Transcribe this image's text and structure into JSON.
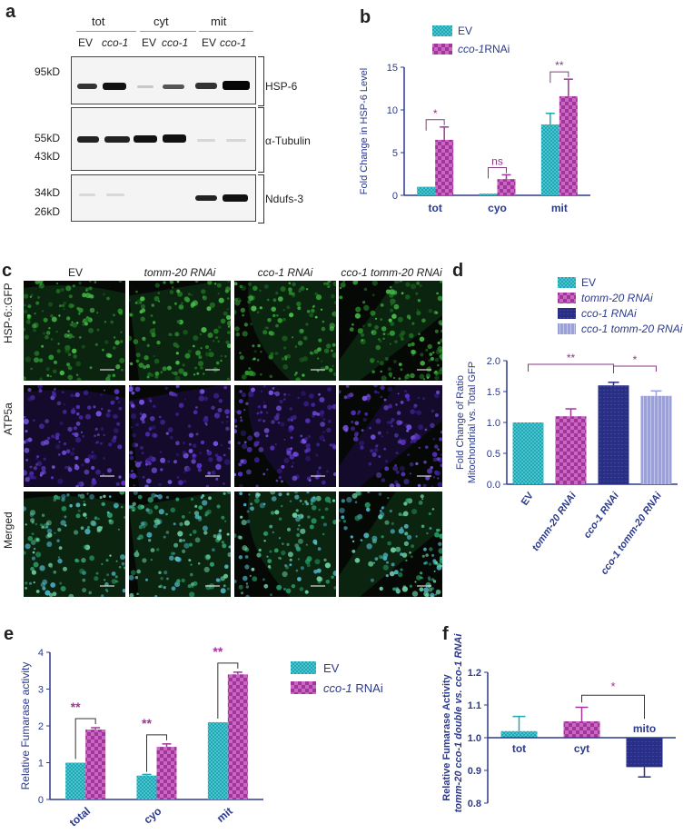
{
  "panels": {
    "a": {
      "label": "a",
      "groups": [
        "tot",
        "cyt",
        "mit"
      ],
      "lanes": [
        "EV",
        "cco-1",
        "EV",
        "cco-1",
        "EV",
        "cco-1"
      ],
      "markers": [
        "95kD",
        "55kD",
        "43kD",
        "34kD",
        "26kD"
      ],
      "rows": [
        "HSP-6",
        "α-Tubulin",
        "Ndufs-3"
      ]
    },
    "b": {
      "label": "b"
    },
    "c": {
      "label": "c",
      "columns": [
        "EV",
        "tomm-20 RNAi",
        "cco-1 RNAi",
        "cco-1 tomm-20 RNAi"
      ],
      "rows": [
        "HSP-6::GFP",
        "ATP5a",
        "Merged"
      ]
    },
    "d": {
      "label": "d"
    },
    "e": {
      "label": "e"
    },
    "f": {
      "label": "f"
    }
  },
  "chart_data": [
    {
      "id": "b",
      "type": "bar",
      "categories": [
        "tot",
        "cyo",
        "mit"
      ],
      "series": [
        {
          "name": "EV",
          "values": [
            1.0,
            0.2,
            8.3
          ],
          "errors": [
            0,
            0,
            1.3
          ],
          "color": "#1ea7b5"
        },
        {
          "name": "cco-1RNAi",
          "values": [
            6.5,
            1.9,
            11.6
          ],
          "errors": [
            1.5,
            0.5,
            2.0
          ],
          "color": "#a2359b"
        }
      ],
      "title": "",
      "xlabel": "",
      "ylabel": "Fold Change in HSP-6 Level",
      "ylim": [
        0,
        15
      ],
      "yticks": [
        0,
        5,
        10,
        15
      ],
      "significance": [
        {
          "category": "tot",
          "text": "*"
        },
        {
          "category": "cyo",
          "text": "ns"
        },
        {
          "category": "mit",
          "text": "**"
        }
      ],
      "legend": "top"
    },
    {
      "id": "d",
      "type": "bar",
      "categories": [
        "EV",
        "tomm-20 RNAi",
        "cco-1 RNAi",
        "cco-1 tomm-20 RNAi"
      ],
      "series": [
        {
          "name": "",
          "values": [
            1.0,
            1.1,
            1.6,
            1.43
          ],
          "errors": [
            0,
            0.12,
            0.05,
            0.08
          ]
        }
      ],
      "legend_entries": [
        {
          "name": "EV",
          "color": "#1ea7b5"
        },
        {
          "name": "tomm-20 RNAi",
          "color": "#a2359b"
        },
        {
          "name": "cco-1 RNAi",
          "color": "#2a2f86"
        },
        {
          "name": "cco-1 tomm-20 RNAi",
          "color": "#9aa0dc"
        }
      ],
      "title": "",
      "xlabel": "",
      "ylabel": "Fold Change of Ratio Mitochondrial vs. Total GFP",
      "ylabel_lines": [
        "Fold Change of Ratio",
        "Mitochondrial vs. Total GFP"
      ],
      "ylim": [
        0,
        2.0
      ],
      "yticks": [
        "0.0",
        "0.5",
        "1.0",
        "1.5",
        "2.0"
      ],
      "significance": [
        {
          "from": 0,
          "to": 2,
          "text": "**"
        },
        {
          "from": 2,
          "to": 3,
          "text": "*"
        }
      ],
      "legend": "top"
    },
    {
      "id": "e",
      "type": "bar",
      "categories": [
        "total",
        "cyo",
        "mit"
      ],
      "series": [
        {
          "name": "EV",
          "values": [
            1.0,
            0.65,
            2.1
          ],
          "errors": [
            0,
            0.03,
            0
          ],
          "color": "#1ea7b5"
        },
        {
          "name": "cco-1 RNAi",
          "values": [
            1.9,
            1.43,
            3.4
          ],
          "errors": [
            0.05,
            0.08,
            0.06
          ],
          "color": "#a2359b"
        }
      ],
      "title": "",
      "xlabel": "",
      "ylabel": "Relative Fumarase activity",
      "ylim": [
        0,
        4
      ],
      "yticks": [
        0,
        1,
        2,
        3,
        4
      ],
      "significance": [
        {
          "category": "total",
          "text": "**"
        },
        {
          "category": "cyo",
          "text": "**"
        },
        {
          "category": "mit",
          "text": "**"
        }
      ],
      "legend": "right"
    },
    {
      "id": "f",
      "type": "bar",
      "categories": [
        "tot",
        "cyt",
        "mito"
      ],
      "series": [
        {
          "name": "",
          "values": [
            1.02,
            1.05,
            0.91
          ],
          "errors": [
            0.045,
            0.043,
            0.03
          ],
          "colors": [
            "#1ea7b5",
            "#a2359b",
            "#2a2f86"
          ]
        }
      ],
      "title": "",
      "xlabel": "",
      "ylabel": "Relative Fumarase Activity tomm-20 cco-1 double vs. cco-1 RNAi",
      "ylabel_lines": [
        "Relative Fumarase Activity",
        "tomm-20 cco-1 double vs. cco-1 RNAi"
      ],
      "ylim": [
        0.8,
        1.2
      ],
      "yticks": [
        "0.8",
        "0.9",
        "1.0",
        "1.1",
        "1.2"
      ],
      "significance": [
        {
          "from": 1,
          "to": 2,
          "text": "*"
        }
      ],
      "legend": "none"
    }
  ]
}
